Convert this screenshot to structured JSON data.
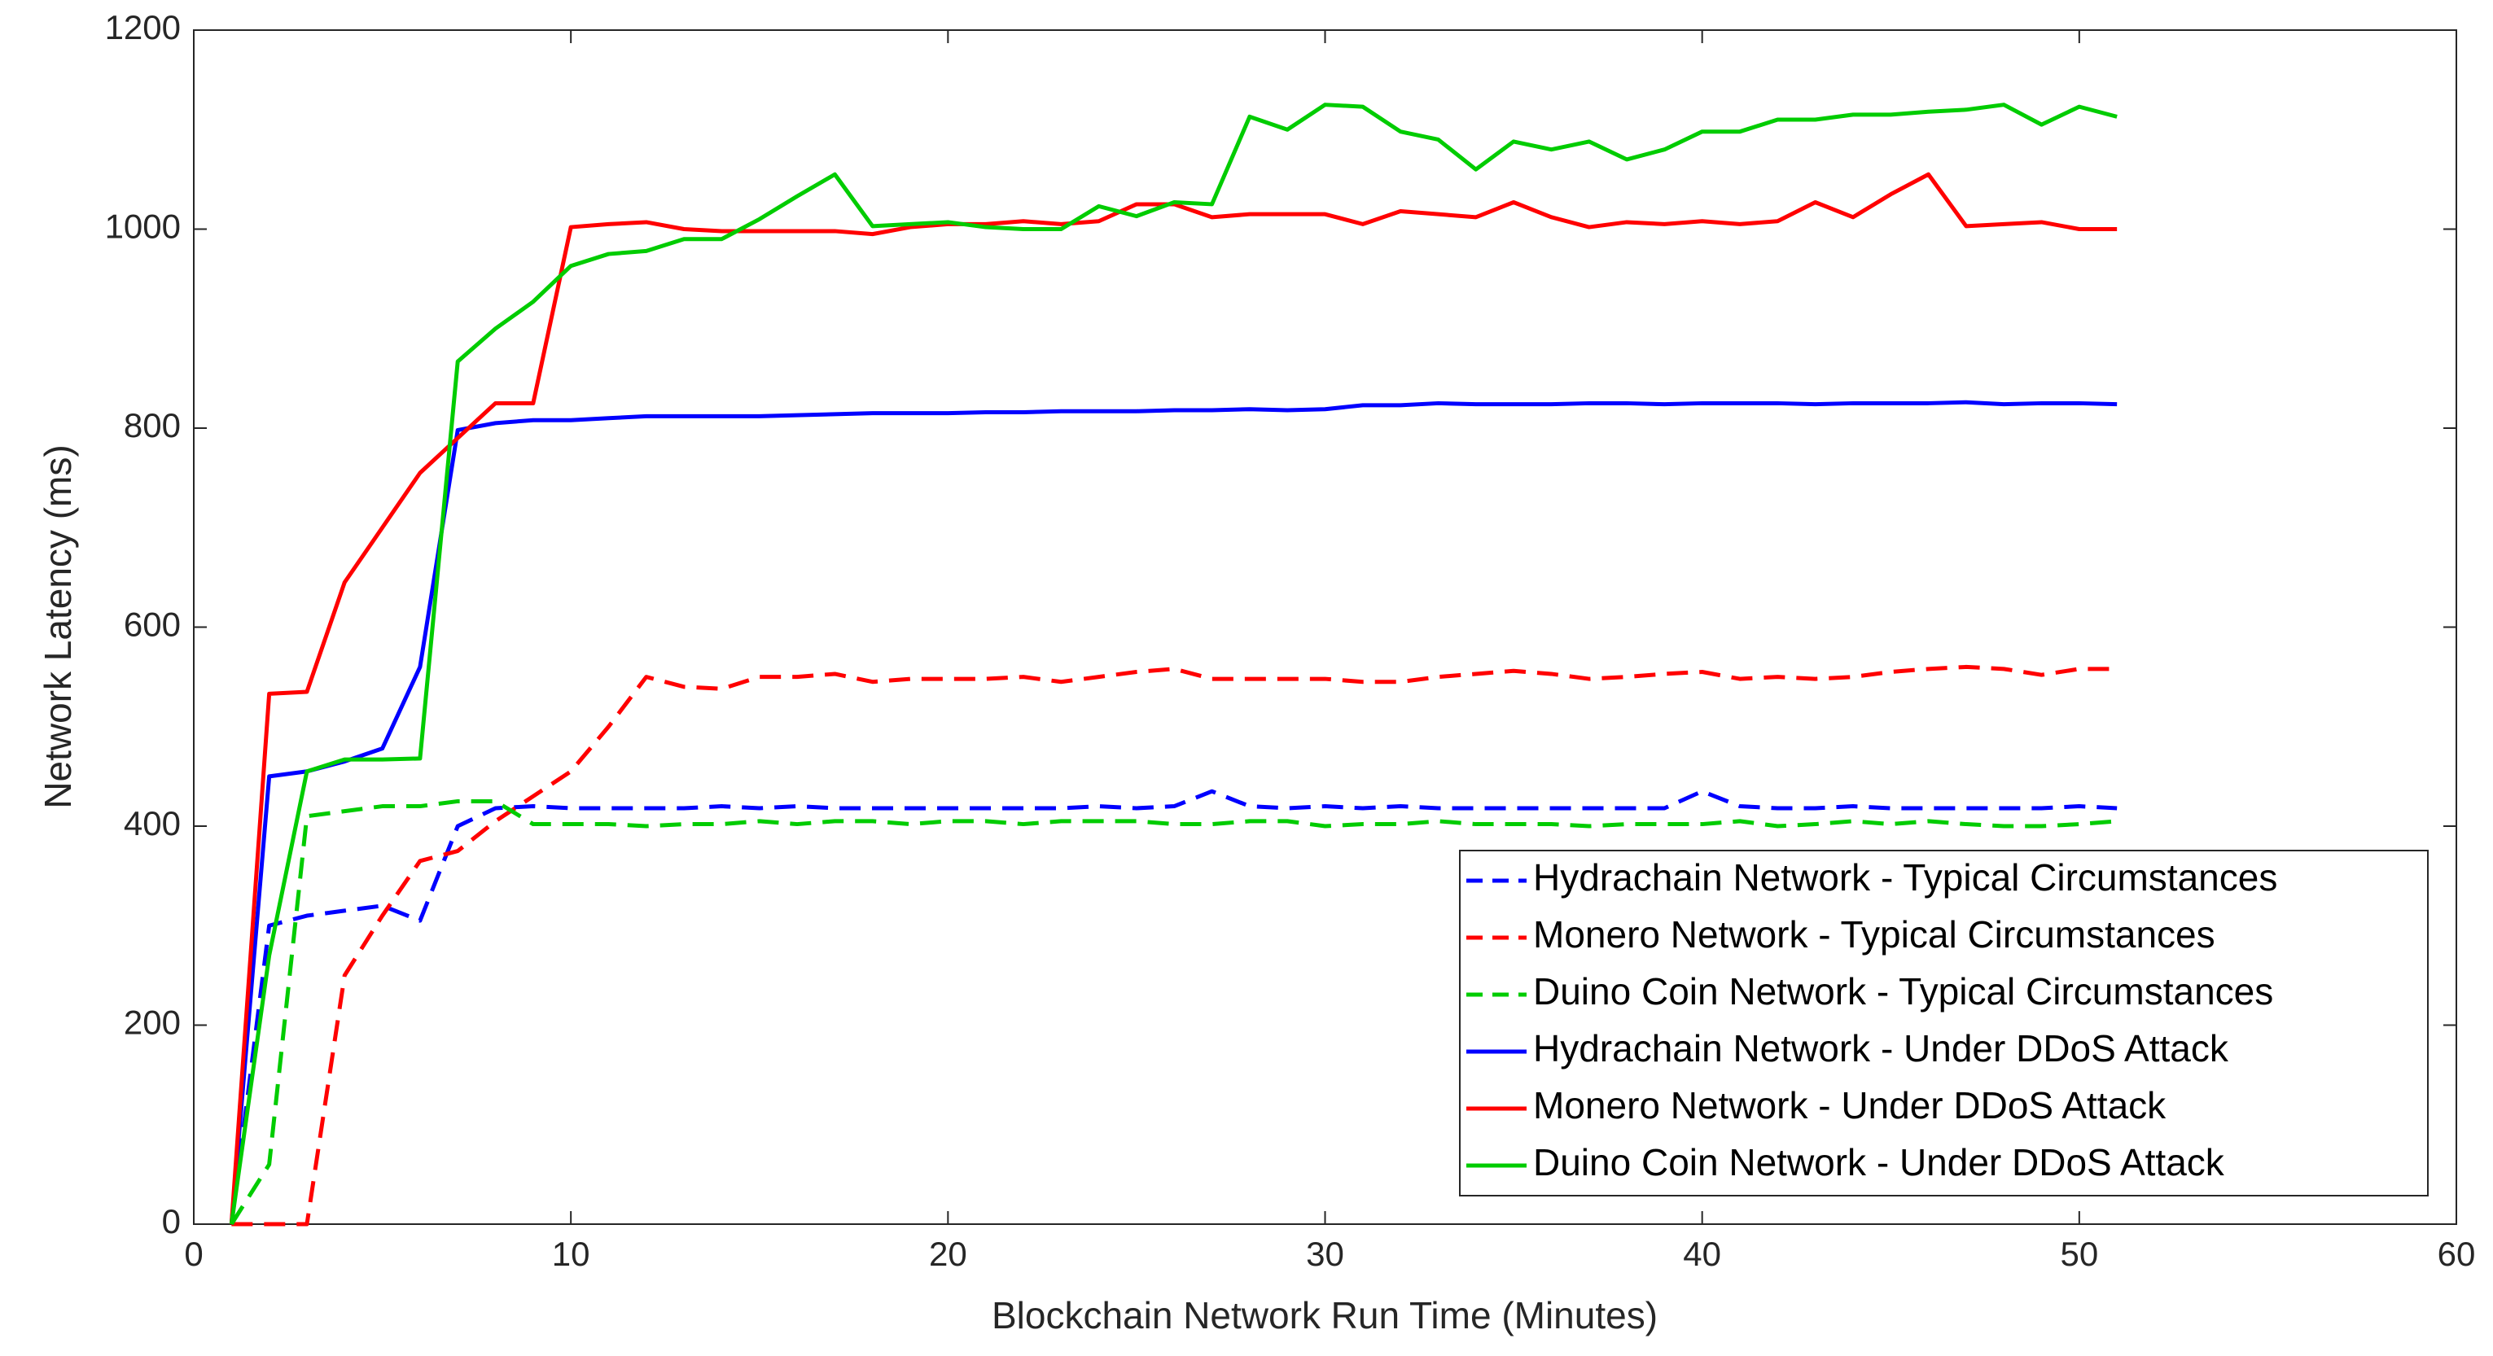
{
  "chart_data": {
    "type": "line",
    "x_label": "Blockchain Network Run Time (Minutes)",
    "y_label": "Network Latency (ms)",
    "xlim": [
      0,
      60
    ],
    "xticks": [
      0,
      10,
      20,
      30,
      40,
      50,
      60
    ],
    "ylim": [
      0,
      1200
    ],
    "yticks": [
      0,
      200,
      400,
      600,
      800,
      1000,
      1200
    ],
    "legend": "lower right",
    "x": [
      1,
      2,
      3,
      4,
      5,
      6,
      7,
      8,
      9,
      10,
      11,
      12,
      13,
      14,
      15,
      16,
      17,
      18,
      19,
      20,
      21,
      22,
      23,
      24,
      25,
      26,
      27,
      28,
      29,
      30,
      31,
      32,
      33,
      34,
      35,
      36,
      37,
      38,
      39,
      40,
      41,
      42,
      43,
      44,
      45,
      46,
      47,
      48,
      49,
      50,
      51
    ],
    "series": [
      {
        "name": "Hydrachain Network - Typical Circumstances",
        "color": "#0000ff",
        "linestyle": "dashed",
        "values": [
          0,
          300,
          310,
          315,
          320,
          305,
          400,
          418,
          420,
          418,
          418,
          418,
          418,
          420,
          418,
          420,
          418,
          418,
          418,
          418,
          418,
          418,
          418,
          420,
          418,
          420,
          435,
          420,
          418,
          420,
          418,
          420,
          418,
          418,
          418,
          418,
          418,
          418,
          418,
          435,
          420,
          418,
          418,
          420,
          418,
          418,
          418,
          418,
          418,
          420,
          418
        ]
      },
      {
        "name": "Monero Network - Typical Circumstances",
        "color": "#ff0000",
        "linestyle": "dashed",
        "values": [
          0,
          0,
          0,
          250,
          310,
          365,
          375,
          405,
          430,
          455,
          500,
          550,
          540,
          538,
          550,
          550,
          553,
          545,
          548,
          548,
          548,
          550,
          545,
          550,
          555,
          558,
          548,
          548,
          548,
          548,
          545,
          545,
          550,
          553,
          556,
          553,
          548,
          550,
          553,
          555,
          548,
          550,
          548,
          550,
          555,
          558,
          560,
          558,
          552,
          558,
          558
        ]
      },
      {
        "name": "Duino Coin Network - Typical Circumstances",
        "color": "#00cc00",
        "linestyle": "dashed",
        "values": [
          0,
          60,
          410,
          415,
          420,
          420,
          425,
          425,
          402,
          402,
          402,
          400,
          402,
          402,
          405,
          402,
          405,
          405,
          402,
          405,
          405,
          402,
          405,
          405,
          405,
          402,
          402,
          405,
          405,
          400,
          402,
          402,
          405,
          402,
          402,
          402,
          400,
          402,
          402,
          402,
          405,
          400,
          402,
          405,
          402,
          405,
          402,
          400,
          400,
          402,
          405
        ]
      },
      {
        "name": "Hydrachain Network - Under DDoS Attack",
        "color": "#0000ff",
        "linestyle": "solid",
        "values": [
          0,
          450,
          455,
          465,
          478,
          560,
          798,
          805,
          808,
          808,
          810,
          812,
          812,
          812,
          812,
          813,
          814,
          815,
          815,
          815,
          816,
          816,
          817,
          817,
          817,
          818,
          818,
          819,
          818,
          819,
          823,
          823,
          825,
          824,
          824,
          824,
          825,
          825,
          824,
          825,
          825,
          825,
          824,
          825,
          825,
          825,
          826,
          824,
          825,
          825,
          824
        ]
      },
      {
        "name": "Monero Network - Under DDoS Attack",
        "color": "#ff0000",
        "linestyle": "solid",
        "values": [
          0,
          533,
          535,
          645,
          700,
          755,
          790,
          825,
          825,
          1002,
          1005,
          1007,
          1000,
          998,
          998,
          998,
          998,
          995,
          1002,
          1005,
          1005,
          1008,
          1005,
          1008,
          1025,
          1025,
          1012,
          1015,
          1015,
          1015,
          1005,
          1018,
          1015,
          1012,
          1027,
          1012,
          1002,
          1007,
          1005,
          1008,
          1005,
          1008,
          1027,
          1012,
          1035,
          1055,
          1003,
          1005,
          1007,
          1000,
          1000
        ]
      },
      {
        "name": "Duino Coin Network - Under DDoS Attack",
        "color": "#00cc00",
        "linestyle": "solid",
        "values": [
          0,
          270,
          455,
          467,
          467,
          468,
          867,
          900,
          927,
          963,
          975,
          978,
          990,
          990,
          1010,
          1033,
          1055,
          1003,
          1005,
          1007,
          1002,
          1000,
          1000,
          1023,
          1013,
          1027,
          1025,
          1113,
          1100,
          1125,
          1123,
          1098,
          1090,
          1060,
          1088,
          1080,
          1088,
          1070,
          1080,
          1098,
          1098,
          1110,
          1110,
          1115,
          1115,
          1118,
          1120,
          1125,
          1105,
          1123,
          1113
        ]
      }
    ]
  }
}
